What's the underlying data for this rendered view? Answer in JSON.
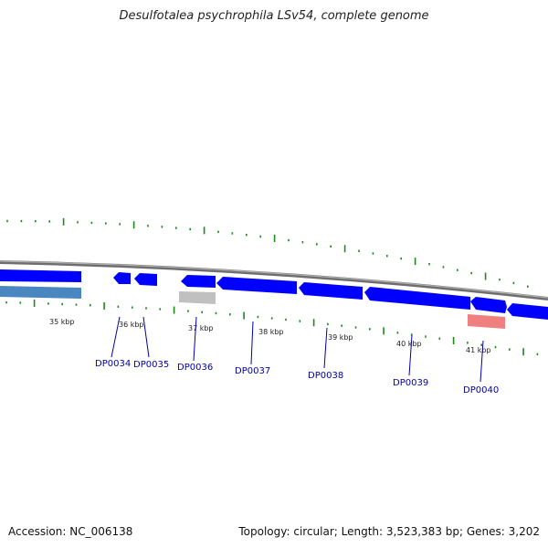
{
  "title": "Desulfotalea psychrophila LSv54, complete genome",
  "footer": {
    "accession": "Accession: NC_006138",
    "summary": "Topology: circular; Length: 3,523,383 bp; Genes: 3,202"
  },
  "scale_labels": [
    "35 kbp",
    "36 kbp",
    "37 kbp",
    "38 kbp",
    "39 kbp",
    "40 kbp",
    "41 kbp"
  ],
  "gene_labels": [
    "DP0034",
    "DP0035",
    "DP0036",
    "DP0037",
    "DP0038",
    "DP0039",
    "DP0040"
  ],
  "colors": {
    "forward_gene": "#0000ff",
    "rna_gene": "#4a86c0",
    "pseudo_gene": "#c0c0c0",
    "pink_gene": "#f08080",
    "backbone": "#808080",
    "tick": "#1a8a1a",
    "label": "#0000aa"
  }
}
